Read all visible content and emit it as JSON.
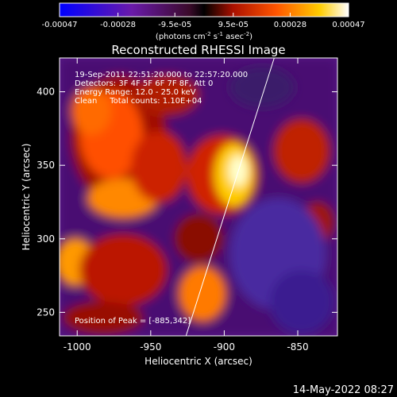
{
  "colorbar": {
    "tick_labels": [
      "-0.00047",
      "-0.00028",
      "-9.5e-05",
      "9.5e-05",
      "0.00028",
      "0.00047"
    ],
    "tick_values": [
      -0.00047,
      -0.00028,
      -9.5e-05,
      9.5e-05,
      0.00028,
      0.00047
    ],
    "range": [
      -0.00047,
      0.00047
    ],
    "units_parts": [
      "(photons cm",
      "-2",
      " s",
      "-1",
      " asec",
      "-2",
      ")"
    ]
  },
  "title": "Reconstructed RHESSI Image",
  "annotations": {
    "time": "19-Sep-2011 22:51:20.000 to 22:57:20.000",
    "detectors": "Detectors: 3F 4F 5F 6F 7F 8F, Att 0",
    "energy": "Energy Range: 12.0 - 25.0 keV",
    "clean": "Clean     Total counts: 1.10E+04",
    "peak": "Position of Peak = [-885,342]"
  },
  "axes": {
    "xlabel": "Heliocentric X (arcsec)",
    "ylabel": "Heliocentric Y (arcsec)",
    "xlim": [
      -1012,
      -823
    ],
    "ylim": [
      234,
      423
    ],
    "xticks": [
      -1000,
      -950,
      -900,
      -850
    ],
    "xtick_labels": [
      "-1000",
      "-950",
      "-900",
      "-850"
    ],
    "yticks": [
      250,
      300,
      350,
      400
    ],
    "ytick_labels": [
      "250",
      "300",
      "350",
      "400"
    ]
  },
  "limb_line": {
    "x": [
      -926,
      -866
    ],
    "y": [
      234,
      423
    ]
  },
  "footer": {
    "timestamp": "14-May-2022 08:27"
  }
}
